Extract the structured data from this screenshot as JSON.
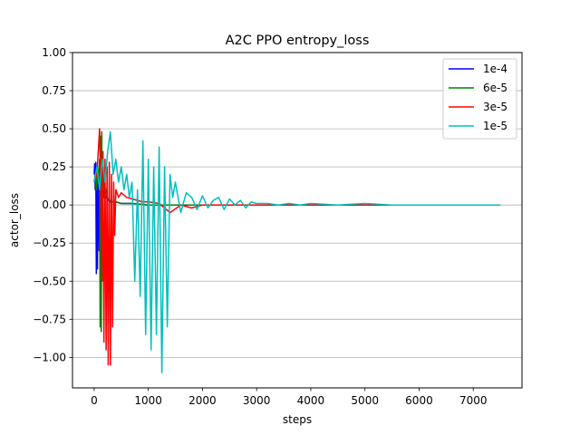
{
  "chart_data": {
    "type": "line",
    "title": "A2C PPO entropy_loss",
    "xlabel": "steps",
    "ylabel": "actor_loss",
    "xlim": [
      -400,
      7900
    ],
    "ylim": [
      -1.2,
      1.0
    ],
    "xticks": [
      0,
      1000,
      2000,
      3000,
      4000,
      5000,
      6000,
      7000
    ],
    "xtick_labels": [
      "0",
      "1000",
      "2000",
      "3000",
      "4000",
      "5000",
      "6000",
      "7000"
    ],
    "yticks": [
      -1.0,
      -0.75,
      -0.5,
      -0.25,
      0.0,
      0.25,
      0.5,
      0.75,
      1.0
    ],
    "ytick_labels": [
      "−1.00",
      "−0.75",
      "−0.50",
      "−0.25",
      "0.00",
      "0.25",
      "0.50",
      "0.75",
      "1.00"
    ],
    "grid": "y-major",
    "legend_position": "top-right",
    "series": [
      {
        "name": "1e-4",
        "color": "#0000ff",
        "x": [
          0,
          10,
          20,
          30,
          40,
          50,
          60,
          70,
          80,
          90,
          100,
          110,
          120,
          130,
          140,
          150,
          160,
          170,
          180,
          190,
          200,
          220,
          240,
          260,
          280,
          300,
          350,
          400,
          500,
          700,
          1000,
          1500,
          2000,
          3000,
          4000,
          5000,
          6000,
          7000,
          7500
        ],
        "y": [
          0.2,
          0.27,
          0.1,
          0.28,
          -0.45,
          0.25,
          -0.42,
          0.22,
          0.15,
          -0.3,
          0.2,
          0.15,
          0.1,
          0.18,
          0.05,
          0.12,
          0.08,
          0.1,
          0.05,
          0.08,
          0.06,
          0.05,
          0.04,
          0.03,
          0.03,
          0.02,
          0.02,
          0.02,
          0.01,
          0.01,
          0.0,
          0.0,
          0.0,
          0.0,
          0.0,
          0.0,
          0.0,
          0.0,
          0.0
        ]
      },
      {
        "name": "6e-5",
        "color": "#008000",
        "x": [
          0,
          20,
          40,
          60,
          80,
          100,
          110,
          120,
          130,
          140,
          150,
          160,
          170,
          180,
          190,
          200,
          210,
          220,
          230,
          240,
          260,
          280,
          300,
          350,
          400,
          500,
          700,
          1000,
          1500,
          2000,
          3000,
          4000,
          5000,
          6000,
          7000,
          7500
        ],
        "y": [
          0.15,
          0.2,
          0.1,
          0.25,
          0.15,
          0.3,
          -0.8,
          0.45,
          -0.83,
          0.48,
          -0.5,
          0.35,
          0.2,
          0.15,
          0.1,
          0.12,
          0.08,
          0.1,
          0.06,
          0.05,
          0.04,
          0.03,
          0.03,
          0.02,
          0.02,
          0.01,
          0.01,
          0.0,
          0.0,
          0.0,
          0.0,
          0.0,
          0.0,
          0.0,
          0.0,
          0.0
        ]
      },
      {
        "name": "3e-5",
        "color": "#ff0000",
        "x": [
          0,
          50,
          100,
          120,
          140,
          160,
          180,
          200,
          220,
          240,
          260,
          280,
          300,
          320,
          340,
          360,
          380,
          400,
          450,
          500,
          600,
          700,
          800,
          900,
          1000,
          1200,
          1400,
          1600,
          1800,
          2000,
          3000,
          4000,
          5000,
          6000,
          7000,
          7500
        ],
        "y": [
          0.15,
          0.2,
          0.5,
          0.1,
          -0.5,
          0.35,
          -0.9,
          0.3,
          -0.95,
          0.25,
          -1.05,
          0.28,
          -1.05,
          0.2,
          -0.8,
          0.15,
          -0.2,
          0.1,
          0.05,
          0.08,
          0.05,
          0.04,
          0.03,
          0.02,
          0.02,
          0.01,
          -0.05,
          0.0,
          -0.02,
          0.0,
          0.0,
          0.0,
          0.0,
          0.0,
          0.0,
          0.0
        ]
      },
      {
        "name": "1e-5",
        "color": "#00bfbf",
        "x": [
          0,
          50,
          100,
          150,
          200,
          250,
          300,
          350,
          400,
          450,
          500,
          550,
          600,
          650,
          700,
          750,
          800,
          850,
          900,
          950,
          1000,
          1050,
          1100,
          1150,
          1200,
          1250,
          1300,
          1350,
          1400,
          1450,
          1500,
          1600,
          1700,
          1800,
          1900,
          2000,
          2100,
          2200,
          2300,
          2400,
          2500,
          2600,
          2700,
          2800,
          2900,
          3000,
          3200,
          3400,
          3600,
          3800,
          4000,
          4500,
          5000,
          5500,
          6000,
          6500,
          7000,
          7500
        ],
        "y": [
          0.15,
          0.25,
          0.1,
          0.3,
          0.15,
          0.35,
          0.48,
          0.2,
          0.3,
          0.15,
          0.25,
          0.1,
          0.2,
          0.05,
          0.15,
          -0.5,
          0.1,
          -0.6,
          0.42,
          -0.85,
          0.3,
          -0.95,
          0.25,
          -0.85,
          0.38,
          -1.1,
          0.25,
          -0.8,
          0.2,
          0.05,
          0.15,
          -0.05,
          0.08,
          0.05,
          -0.03,
          0.06,
          -0.02,
          0.03,
          0.05,
          -0.03,
          0.04,
          0.0,
          0.03,
          -0.02,
          0.02,
          0.01,
          0.01,
          0.0,
          0.01,
          0.0,
          0.01,
          0.0,
          0.01,
          0.0,
          0.0,
          0.0,
          0.0,
          0.0
        ]
      }
    ]
  }
}
